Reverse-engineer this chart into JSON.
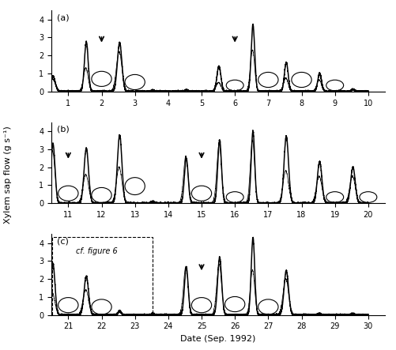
{
  "title": "",
  "ylabel": "Xylem sap flow (g s⁻¹)",
  "xlabel": "Date (Sep. 1992)",
  "panels": [
    "(a)",
    "(b)",
    "(c)"
  ],
  "ylim": [
    0,
    4.5
  ],
  "yticks": [
    0,
    1,
    2,
    3,
    4
  ],
  "arrow_a": [
    2.0,
    6.0
  ],
  "arrow_b": [
    11.0,
    15.0
  ],
  "arrow_c": [
    25.0
  ],
  "background": "#ffffff"
}
